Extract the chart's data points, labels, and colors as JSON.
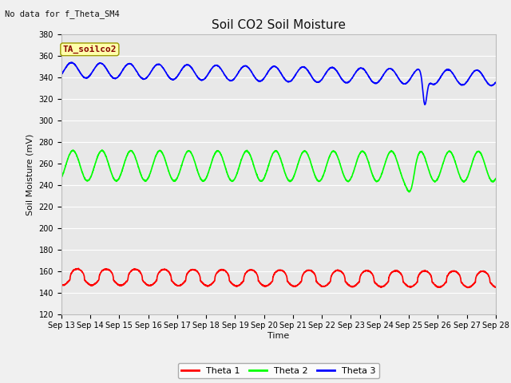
{
  "title": "Soil CO2 Soil Moisture",
  "ylabel": "Soil Moisture (mV)",
  "xlabel": "Time",
  "no_data_text": "No data for f_Theta_SM4",
  "annotation_text": "TA_soilco2",
  "xlim": [
    13,
    28
  ],
  "ylim": [
    120,
    380
  ],
  "yticks": [
    120,
    140,
    160,
    180,
    200,
    220,
    240,
    260,
    280,
    300,
    320,
    340,
    360,
    380
  ],
  "xtick_positions": [
    13,
    14,
    15,
    16,
    17,
    18,
    19,
    20,
    21,
    22,
    23,
    24,
    25,
    26,
    27,
    28
  ],
  "xtick_labels": [
    "Sep 13",
    "Sep 14",
    "Sep 15",
    "Sep 16",
    "Sep 17",
    "Sep 18",
    "Sep 19",
    "Sep 20",
    "Sep 21",
    "Sep 22",
    "Sep 23",
    "Sep 24",
    "Sep 25",
    "Sep 26",
    "Sep 27",
    "Sep 28"
  ],
  "legend_entries": [
    "Theta 1",
    "Theta 2",
    "Theta 3"
  ],
  "legend_colors": [
    "#ff0000",
    "#00ff00",
    "#0000ff"
  ],
  "fig_bg": "#f0f0f0",
  "ax_bg": "#e8e8e8",
  "grid_color": "#ffffff",
  "line_width": 1.2,
  "title_fontsize": 11,
  "label_fontsize": 8,
  "tick_fontsize": 7,
  "legend_fontsize": 8
}
